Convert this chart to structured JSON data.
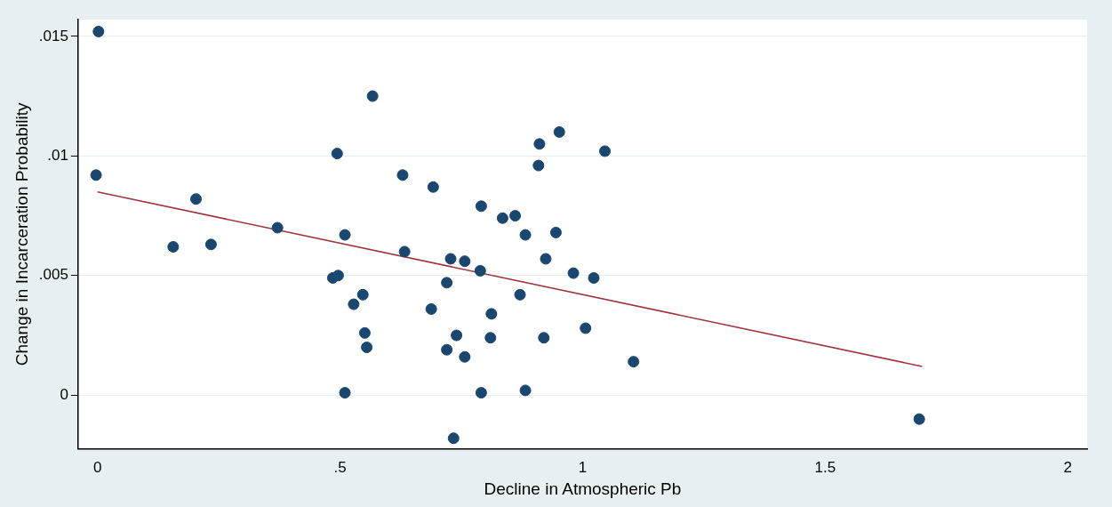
{
  "chart_data": {
    "type": "scatter",
    "xlabel": "Decline in Atmospheric Pb",
    "ylabel": "Change in Incarceration Probability",
    "xlim": [
      -0.04,
      2.04
    ],
    "ylim": [
      -0.00225,
      0.0157
    ],
    "xticks": [
      0,
      {
        "value": 0.5,
        "label": ".5"
      },
      1,
      1.5,
      2
    ],
    "yticks": [
      0,
      {
        "value": 0.005,
        "label": ".005"
      },
      {
        "value": 0.01,
        "label": ".01"
      },
      {
        "value": 0.015,
        "label": ".015"
      }
    ],
    "grid": "y",
    "legend": false,
    "marker": "circle",
    "series": [
      {
        "color": "#1a476f",
        "x": [
          0.002,
          -0.003,
          0.203,
          0.156,
          0.234,
          0.371,
          0.567,
          0.494,
          0.51,
          0.485,
          0.496,
          0.547,
          0.528,
          0.551,
          0.555,
          0.51,
          0.629,
          0.692,
          0.633,
          0.728,
          0.757,
          0.72,
          0.688,
          0.74,
          0.72,
          0.757,
          0.734,
          0.791,
          0.835,
          0.861,
          0.789,
          0.812,
          0.81,
          0.791,
          0.882,
          0.871,
          0.882,
          0.911,
          0.952,
          0.909,
          0.945,
          0.924,
          0.92,
          0.981,
          1.023,
          1.006,
          1.046,
          1.105,
          1.694
        ],
        "values": [
          0.0152,
          0.0092,
          0.0082,
          0.0062,
          0.0063,
          0.007,
          0.0125,
          0.0101,
          0.0067,
          0.0049,
          0.005,
          0.0042,
          0.0038,
          0.0026,
          0.002,
          0.0001,
          0.0092,
          0.0087,
          0.006,
          0.0057,
          0.0056,
          0.0047,
          0.0036,
          0.0025,
          0.0019,
          0.0016,
          -0.0018,
          0.0079,
          0.0074,
          0.0075,
          0.0052,
          0.0034,
          0.0024,
          0.0001,
          0.0067,
          0.0042,
          0.0002,
          0.0105,
          0.011,
          0.0096,
          0.0068,
          0.0057,
          0.0024,
          0.0051,
          0.0049,
          0.0028,
          0.0102,
          0.0014,
          -0.001
        ]
      },
      {
        "type": "line",
        "color": "#a0343a",
        "marker": "none",
        "x": [
          0,
          1.7
        ],
        "values": [
          0.0085,
          0.0012
        ]
      }
    ]
  }
}
